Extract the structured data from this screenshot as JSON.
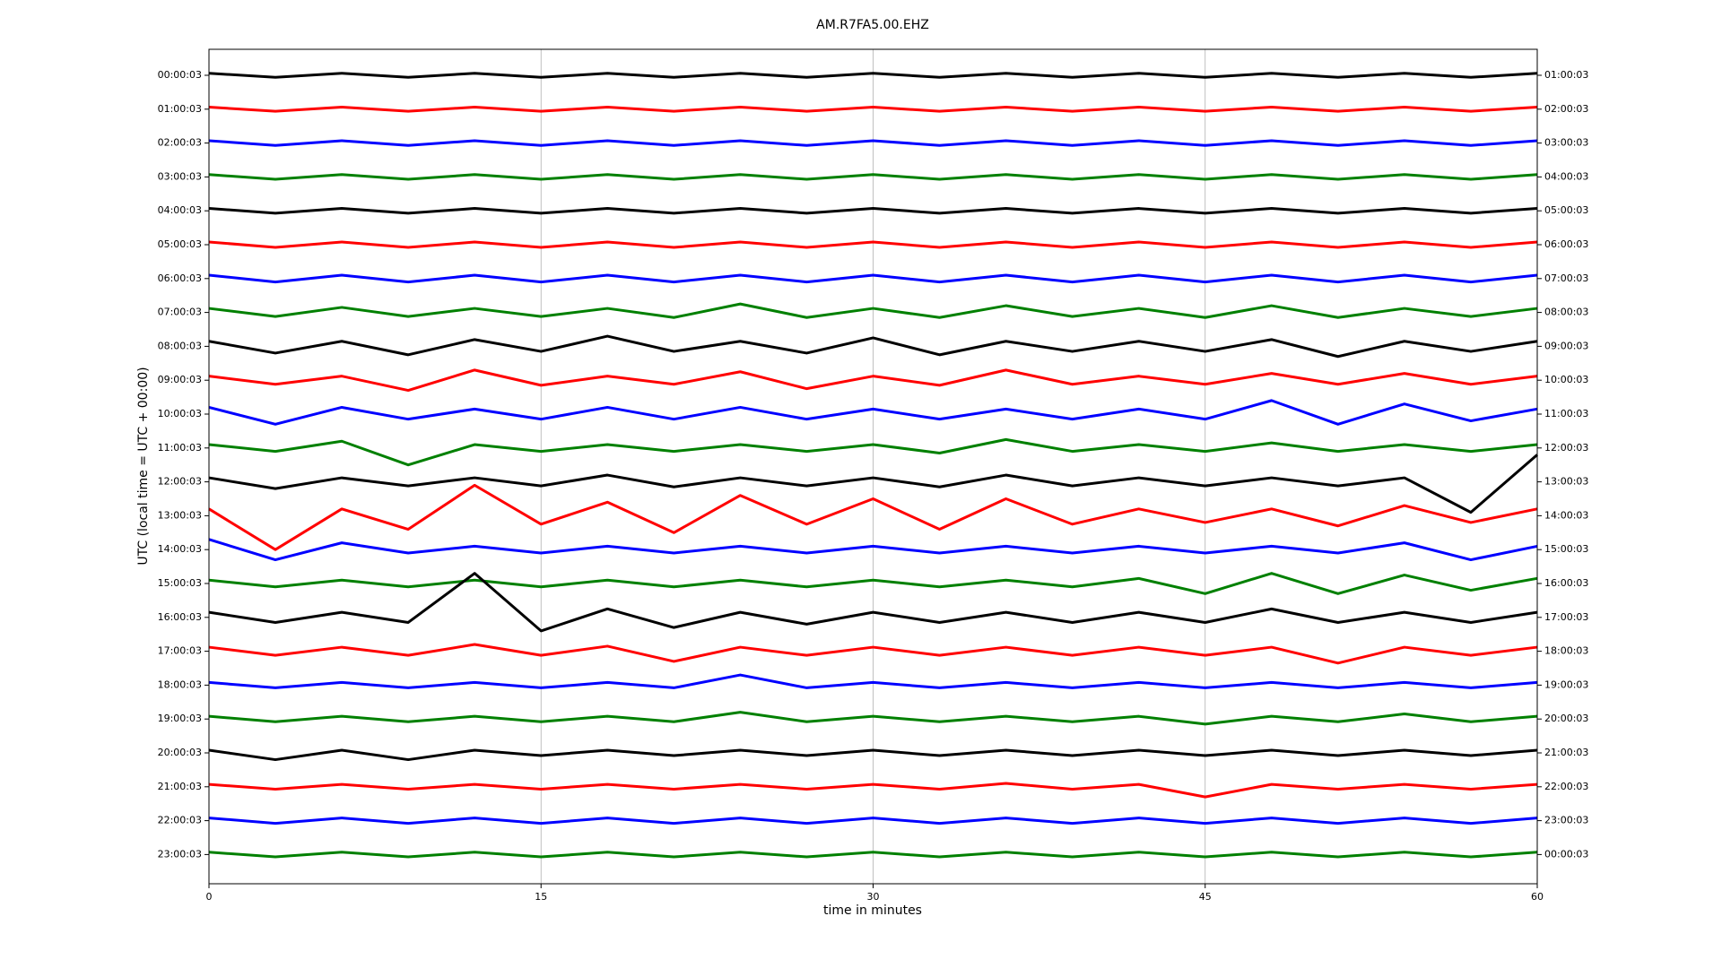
{
  "chart_data": {
    "type": "helicorder",
    "title": "AM.R7FA5.00.EHZ",
    "xlabel": "time in minutes",
    "ylabel": "UTC (local time = UTC + 00:00)",
    "xlim": [
      0,
      60
    ],
    "xticks": [
      0,
      15,
      30,
      45,
      60
    ],
    "grid": true,
    "x": [
      0,
      3,
      6,
      9,
      12,
      15,
      18,
      21,
      24,
      27,
      30,
      33,
      36,
      39,
      42,
      45,
      48,
      51,
      54,
      57,
      60
    ],
    "categories": [
      "00:00:03",
      "01:00:03",
      "02:00:03",
      "03:00:03",
      "04:00:03",
      "05:00:03",
      "06:00:03",
      "07:00:03",
      "08:00:03",
      "09:00:03",
      "10:00:03",
      "11:00:03",
      "12:00:03",
      "13:00:03",
      "14:00:03",
      "15:00:03",
      "16:00:03",
      "17:00:03",
      "18:00:03",
      "19:00:03",
      "20:00:03",
      "21:00:03",
      "22:00:03",
      "23:00:03"
    ],
    "right_labels": [
      "01:00:03",
      "02:00:03",
      "03:00:03",
      "04:00:03",
      "05:00:03",
      "06:00:03",
      "07:00:03",
      "08:00:03",
      "09:00:03",
      "10:00:03",
      "11:00:03",
      "12:00:03",
      "13:00:03",
      "14:00:03",
      "15:00:03",
      "16:00:03",
      "17:00:03",
      "18:00:03",
      "19:00:03",
      "20:00:03",
      "21:00:03",
      "22:00:03",
      "23:00:03",
      "00:00:03"
    ],
    "series": [
      {
        "color": "#000000",
        "values": [
          0.06,
          0.06,
          0.06,
          0.06,
          0.06,
          0.06,
          0.06,
          0.06,
          0.06,
          0.06,
          0.06,
          0.06,
          0.06,
          0.06,
          0.06,
          0.06,
          0.06,
          0.06,
          0.06,
          0.06,
          0.06
        ]
      },
      {
        "color": "#ff0000",
        "values": [
          0.06,
          0.06,
          0.06,
          0.06,
          0.06,
          0.06,
          0.06,
          0.06,
          0.06,
          0.06,
          0.06,
          0.06,
          0.06,
          0.06,
          0.06,
          0.06,
          0.06,
          0.06,
          0.06,
          0.06,
          0.06
        ]
      },
      {
        "color": "#0000ff",
        "values": [
          0.07,
          0.07,
          0.07,
          0.07,
          0.07,
          0.07,
          0.07,
          0.07,
          0.07,
          0.07,
          0.07,
          0.07,
          0.07,
          0.07,
          0.07,
          0.07,
          0.07,
          0.07,
          0.07,
          0.07,
          0.07
        ]
      },
      {
        "color": "#008000",
        "values": [
          0.07,
          0.07,
          0.07,
          0.07,
          0.07,
          0.07,
          0.07,
          0.07,
          0.07,
          0.07,
          0.07,
          0.07,
          0.07,
          0.07,
          0.07,
          0.07,
          0.07,
          0.07,
          0.07,
          0.07,
          0.07
        ]
      },
      {
        "color": "#000000",
        "values": [
          0.07,
          0.07,
          0.07,
          0.07,
          0.07,
          0.07,
          0.07,
          0.07,
          0.07,
          0.07,
          0.07,
          0.07,
          0.07,
          0.07,
          0.07,
          0.07,
          0.07,
          0.07,
          0.07,
          0.07,
          0.07
        ]
      },
      {
        "color": "#ff0000",
        "values": [
          0.08,
          0.08,
          0.08,
          0.08,
          0.08,
          0.08,
          0.08,
          0.08,
          0.08,
          0.08,
          0.08,
          0.08,
          0.08,
          0.08,
          0.08,
          0.08,
          0.08,
          0.08,
          0.08,
          0.08,
          0.08
        ]
      },
      {
        "color": "#0000ff",
        "values": [
          0.1,
          0.1,
          0.1,
          0.1,
          0.1,
          0.1,
          0.1,
          0.1,
          0.1,
          0.1,
          0.1,
          0.1,
          0.1,
          0.1,
          0.1,
          0.1,
          0.1,
          0.1,
          0.1,
          0.1,
          0.1
        ]
      },
      {
        "color": "#008000",
        "values": [
          0.12,
          0.12,
          0.15,
          0.12,
          0.12,
          0.12,
          0.12,
          0.15,
          0.25,
          0.15,
          0.12,
          0.15,
          0.2,
          0.12,
          0.12,
          0.15,
          0.2,
          0.15,
          0.12,
          0.12,
          0.12
        ]
      },
      {
        "color": "#000000",
        "values": [
          0.15,
          0.2,
          0.15,
          0.25,
          0.2,
          0.15,
          0.3,
          0.15,
          0.15,
          0.2,
          0.25,
          0.25,
          0.15,
          0.15,
          0.15,
          0.15,
          0.2,
          0.3,
          0.15,
          0.15,
          0.15
        ]
      },
      {
        "color": "#ff0000",
        "values": [
          0.12,
          0.12,
          0.12,
          0.3,
          0.3,
          0.15,
          0.12,
          0.12,
          0.25,
          0.25,
          0.12,
          0.15,
          0.3,
          0.12,
          0.12,
          0.12,
          0.2,
          0.12,
          0.2,
          0.12,
          0.12
        ]
      },
      {
        "color": "#0000ff",
        "values": [
          0.2,
          0.3,
          0.2,
          0.15,
          0.15,
          0.15,
          0.2,
          0.15,
          0.2,
          0.15,
          0.15,
          0.15,
          0.15,
          0.15,
          0.15,
          0.15,
          0.4,
          0.3,
          0.3,
          0.2,
          0.15
        ]
      },
      {
        "color": "#008000",
        "values": [
          0.1,
          0.1,
          0.2,
          0.5,
          0.1,
          0.1,
          0.1,
          0.1,
          0.1,
          0.1,
          0.1,
          0.15,
          0.25,
          0.1,
          0.1,
          0.1,
          0.15,
          0.1,
          0.1,
          0.1,
          0.1
        ]
      },
      {
        "color": "#000000",
        "values": [
          0.12,
          0.2,
          0.12,
          0.12,
          0.12,
          0.12,
          0.2,
          0.15,
          0.12,
          0.12,
          0.12,
          0.15,
          0.2,
          0.12,
          0.12,
          0.12,
          0.12,
          0.12,
          0.12,
          0.9,
          0.8
        ]
      },
      {
        "color": "#ff0000",
        "values": [
          0.2,
          1.0,
          0.2,
          0.4,
          0.9,
          0.25,
          0.4,
          0.5,
          0.6,
          0.25,
          0.5,
          0.4,
          0.5,
          0.25,
          0.2,
          0.2,
          0.2,
          0.3,
          0.3,
          0.2,
          0.2
        ]
      },
      {
        "color": "#0000ff",
        "values": [
          0.3,
          0.3,
          0.2,
          0.1,
          0.1,
          0.1,
          0.1,
          0.1,
          0.1,
          0.1,
          0.1,
          0.1,
          0.1,
          0.1,
          0.1,
          0.1,
          0.1,
          0.1,
          0.2,
          0.3,
          0.1
        ]
      },
      {
        "color": "#008000",
        "values": [
          0.1,
          0.1,
          0.1,
          0.1,
          0.1,
          0.1,
          0.1,
          0.1,
          0.1,
          0.1,
          0.1,
          0.1,
          0.1,
          0.1,
          0.15,
          0.3,
          0.3,
          0.3,
          0.25,
          0.2,
          0.15
        ]
      },
      {
        "color": "#000000",
        "values": [
          0.15,
          0.15,
          0.15,
          0.15,
          1.3,
          0.4,
          0.25,
          0.3,
          0.15,
          0.2,
          0.15,
          0.15,
          0.15,
          0.15,
          0.15,
          0.15,
          0.25,
          0.15,
          0.15,
          0.15,
          0.15
        ]
      },
      {
        "color": "#ff0000",
        "values": [
          0.12,
          0.12,
          0.12,
          0.12,
          0.2,
          0.12,
          0.15,
          0.3,
          0.12,
          0.12,
          0.12,
          0.12,
          0.12,
          0.12,
          0.12,
          0.12,
          0.12,
          0.35,
          0.12,
          0.12,
          0.12
        ]
      },
      {
        "color": "#0000ff",
        "values": [
          0.08,
          0.08,
          0.08,
          0.08,
          0.08,
          0.08,
          0.08,
          0.08,
          0.3,
          0.08,
          0.08,
          0.08,
          0.08,
          0.08,
          0.08,
          0.08,
          0.08,
          0.08,
          0.08,
          0.08,
          0.08
        ]
      },
      {
        "color": "#008000",
        "values": [
          0.08,
          0.08,
          0.08,
          0.08,
          0.08,
          0.08,
          0.08,
          0.08,
          0.2,
          0.08,
          0.08,
          0.08,
          0.08,
          0.08,
          0.08,
          0.15,
          0.08,
          0.08,
          0.15,
          0.08,
          0.08
        ]
      },
      {
        "color": "#000000",
        "values": [
          0.08,
          0.2,
          0.08,
          0.2,
          0.08,
          0.08,
          0.08,
          0.08,
          0.08,
          0.08,
          0.08,
          0.08,
          0.08,
          0.08,
          0.08,
          0.08,
          0.08,
          0.08,
          0.08,
          0.08,
          0.08
        ]
      },
      {
        "color": "#ff0000",
        "values": [
          0.07,
          0.07,
          0.07,
          0.07,
          0.07,
          0.07,
          0.07,
          0.07,
          0.07,
          0.07,
          0.07,
          0.07,
          0.1,
          0.07,
          0.07,
          0.3,
          0.07,
          0.07,
          0.07,
          0.07,
          0.07
        ]
      },
      {
        "color": "#0000ff",
        "values": [
          0.08,
          0.08,
          0.08,
          0.08,
          0.08,
          0.08,
          0.08,
          0.08,
          0.08,
          0.08,
          0.08,
          0.08,
          0.08,
          0.08,
          0.08,
          0.08,
          0.08,
          0.08,
          0.08,
          0.08,
          0.08
        ]
      },
      {
        "color": "#008000",
        "values": [
          0.07,
          0.07,
          0.07,
          0.07,
          0.07,
          0.07,
          0.07,
          0.07,
          0.07,
          0.07,
          0.07,
          0.07,
          0.07,
          0.07,
          0.07,
          0.07,
          0.07,
          0.07,
          0.07,
          0.07,
          0.07
        ]
      }
    ]
  }
}
